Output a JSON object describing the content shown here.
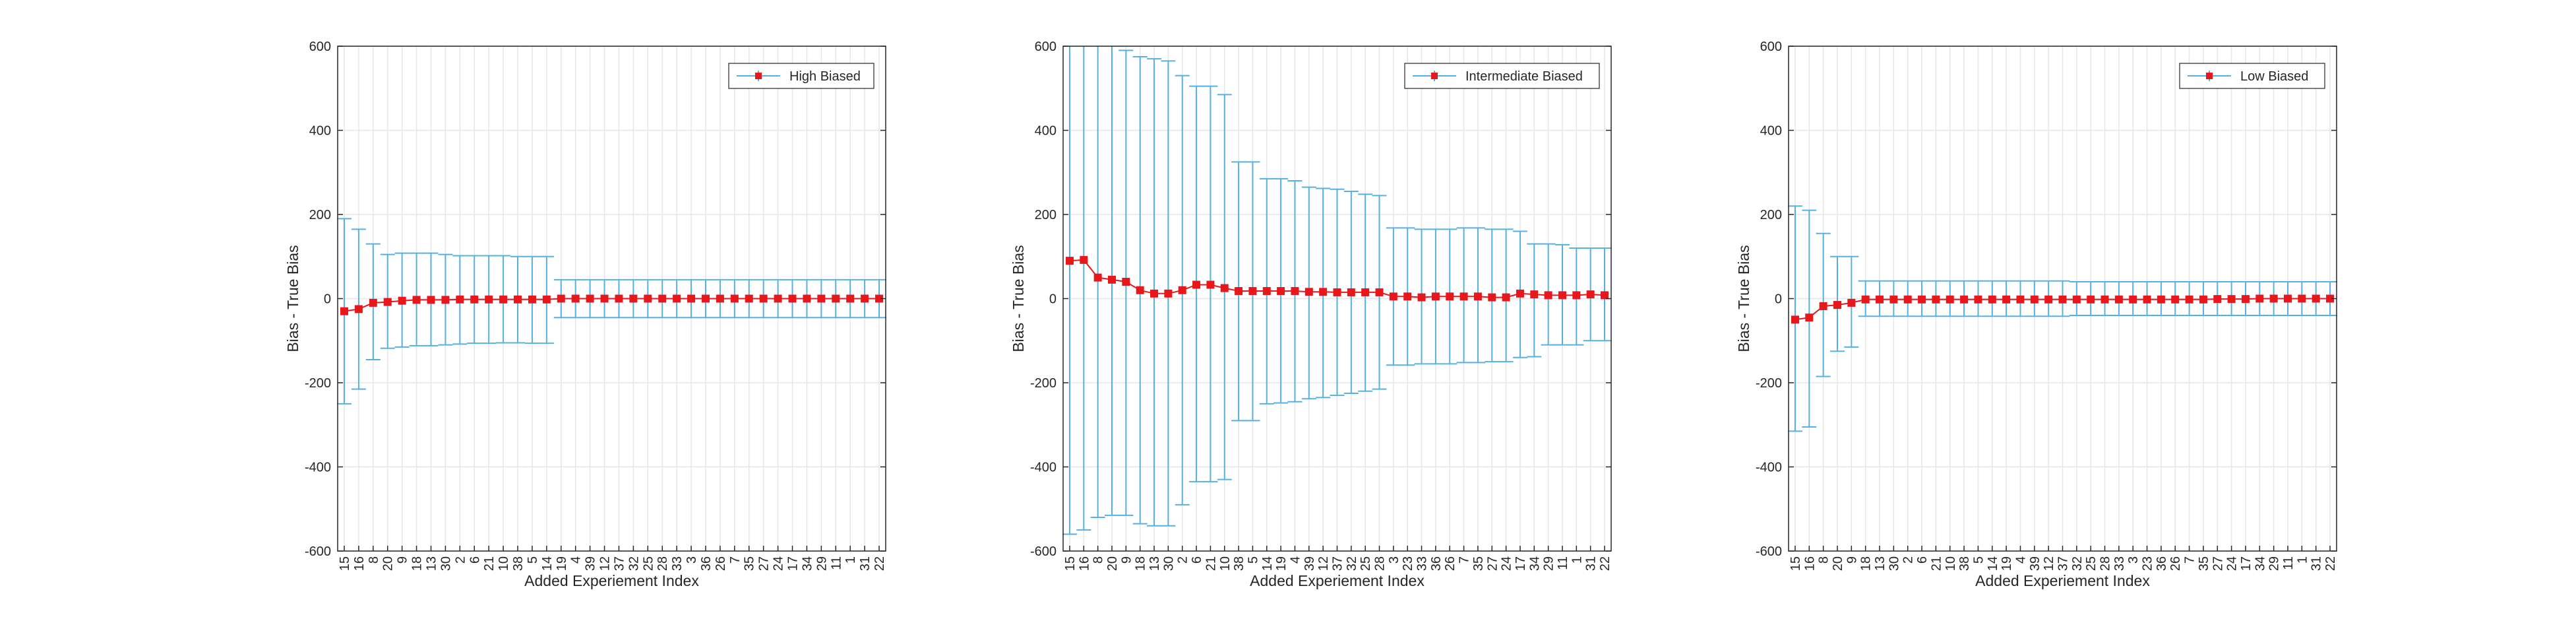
{
  "chart_data": [
    {
      "type": "errorbar",
      "xlabel": "Added Experiement Index",
      "ylabel": "Bias - True Bias",
      "ylim": [
        -600,
        600
      ],
      "yticks": [
        -600,
        -400,
        -200,
        0,
        200,
        400,
        600
      ],
      "grid": true,
      "legend": {
        "placement": "top-right",
        "label": "High Biased"
      },
      "colors": {
        "marker": "#e8171b",
        "errorbar": "#56b0e1",
        "axis": "#262626",
        "grid": "#e6e6e6"
      },
      "categories": [
        "15",
        "16",
        "8",
        "20",
        "9",
        "18",
        "13",
        "30",
        "2",
        "6",
        "21",
        "10",
        "38",
        "5",
        "14",
        "19",
        "4",
        "39",
        "12",
        "37",
        "32",
        "25",
        "28",
        "33",
        "3",
        "36",
        "26",
        "7",
        "35",
        "27",
        "24",
        "17",
        "34",
        "29",
        "11",
        "1",
        "31",
        "22"
      ],
      "values": [
        -30,
        -25,
        -10,
        -8,
        -5,
        -3,
        -3,
        -3,
        -2,
        -2,
        -2,
        -2,
        -2,
        -2,
        -2,
        0,
        0,
        0,
        0,
        0,
        0,
        0,
        0,
        0,
        0,
        0,
        0,
        0,
        0,
        0,
        0,
        0,
        0,
        0,
        0,
        0,
        0,
        0
      ],
      "upper": [
        190,
        165,
        130,
        105,
        108,
        108,
        108,
        105,
        102,
        102,
        102,
        102,
        100,
        100,
        100,
        45,
        45,
        45,
        45,
        45,
        45,
        45,
        45,
        45,
        45,
        45,
        45,
        45,
        45,
        45,
        45,
        45,
        45,
        45,
        45,
        45,
        45,
        45
      ],
      "lower": [
        -250,
        -215,
        -145,
        -118,
        -115,
        -112,
        -112,
        -110,
        -108,
        -106,
        -106,
        -105,
        -105,
        -106,
        -106,
        -45,
        -45,
        -45,
        -45,
        -45,
        -45,
        -45,
        -45,
        -45,
        -45,
        -45,
        -45,
        -45,
        -45,
        -45,
        -45,
        -45,
        -45,
        -45,
        -45,
        -45,
        -45,
        -45
      ]
    },
    {
      "type": "errorbar",
      "xlabel": "Added Experiement Index",
      "ylabel": "Bias - True Bias",
      "ylim": [
        -600,
        600
      ],
      "yticks": [
        -600,
        -400,
        -200,
        0,
        200,
        400,
        600
      ],
      "grid": true,
      "legend": {
        "placement": "top-right",
        "label": "Intermediate Biased"
      },
      "colors": {
        "marker": "#e8171b",
        "errorbar": "#56b0e1",
        "axis": "#262626",
        "grid": "#e6e6e6"
      },
      "categories": [
        "15",
        "16",
        "8",
        "20",
        "9",
        "18",
        "13",
        "30",
        "2",
        "6",
        "21",
        "10",
        "38",
        "5",
        "14",
        "19",
        "4",
        "39",
        "12",
        "37",
        "32",
        "25",
        "28",
        "3",
        "23",
        "33",
        "36",
        "26",
        "7",
        "35",
        "27",
        "24",
        "17",
        "34",
        "29",
        "11",
        "1",
        "31",
        "22"
      ],
      "values": [
        90,
        92,
        50,
        45,
        40,
        20,
        12,
        12,
        20,
        33,
        33,
        25,
        18,
        18,
        18,
        18,
        18,
        16,
        16,
        15,
        15,
        15,
        15,
        5,
        5,
        3,
        5,
        5,
        5,
        5,
        3,
        3,
        12,
        10,
        8,
        8,
        8,
        10,
        8
      ],
      "upper": [
        620,
        620,
        620,
        620,
        590,
        575,
        570,
        565,
        530,
        505,
        505,
        485,
        325,
        325,
        285,
        285,
        280,
        265,
        262,
        260,
        255,
        248,
        245,
        168,
        168,
        165,
        165,
        165,
        168,
        168,
        165,
        165,
        160,
        130,
        130,
        128,
        120,
        120,
        120
      ],
      "lower": [
        -560,
        -550,
        -520,
        -515,
        -515,
        -535,
        -540,
        -540,
        -490,
        -435,
        -435,
        -430,
        -290,
        -290,
        -250,
        -248,
        -245,
        -238,
        -235,
        -230,
        -225,
        -220,
        -215,
        -158,
        -158,
        -155,
        -155,
        -155,
        -152,
        -152,
        -150,
        -150,
        -140,
        -138,
        -110,
        -110,
        -110,
        -100,
        -100
      ]
    },
    {
      "type": "errorbar",
      "xlabel": "Added Experiement Index",
      "ylabel": "Bias - True Bias",
      "ylim": [
        -600,
        600
      ],
      "yticks": [
        -600,
        -400,
        -200,
        0,
        200,
        400,
        600
      ],
      "grid": true,
      "legend": {
        "placement": "top-right",
        "label": "Low Biased"
      },
      "colors": {
        "marker": "#e8171b",
        "errorbar": "#56b0e1",
        "axis": "#262626",
        "grid": "#e6e6e6"
      },
      "categories": [
        "15",
        "16",
        "8",
        "20",
        "9",
        "18",
        "13",
        "30",
        "2",
        "6",
        "21",
        "10",
        "38",
        "5",
        "14",
        "19",
        "4",
        "39",
        "12",
        "37",
        "32",
        "25",
        "28",
        "33",
        "3",
        "23",
        "36",
        "26",
        "7",
        "35",
        "27",
        "24",
        "17",
        "34",
        "29",
        "11",
        "1",
        "31",
        "22"
      ],
      "values": [
        -50,
        -45,
        -18,
        -15,
        -10,
        -2,
        -2,
        -2,
        -2,
        -2,
        -2,
        -2,
        -2,
        -2,
        -2,
        -2,
        -2,
        -2,
        -2,
        -2,
        -2,
        -2,
        -2,
        -2,
        -2,
        -2,
        -2,
        -2,
        -2,
        -2,
        -1,
        -1,
        -1,
        0,
        0,
        0,
        0,
        0,
        0
      ],
      "upper": [
        220,
        210,
        155,
        100,
        100,
        42,
        42,
        42,
        42,
        42,
        42,
        42,
        42,
        42,
        42,
        42,
        42,
        42,
        42,
        42,
        40,
        40,
        40,
        40,
        40,
        40,
        40,
        40,
        40,
        40,
        40,
        40,
        40,
        40,
        40,
        40,
        40,
        40,
        40
      ],
      "lower": [
        -315,
        -305,
        -185,
        -125,
        -115,
        -42,
        -42,
        -42,
        -42,
        -42,
        -42,
        -42,
        -42,
        -42,
        -42,
        -42,
        -42,
        -42,
        -42,
        -42,
        -40,
        -40,
        -40,
        -40,
        -40,
        -40,
        -40,
        -40,
        -40,
        -40,
        -40,
        -40,
        -40,
        -40,
        -40,
        -40,
        -40,
        -40,
        -40
      ]
    }
  ]
}
